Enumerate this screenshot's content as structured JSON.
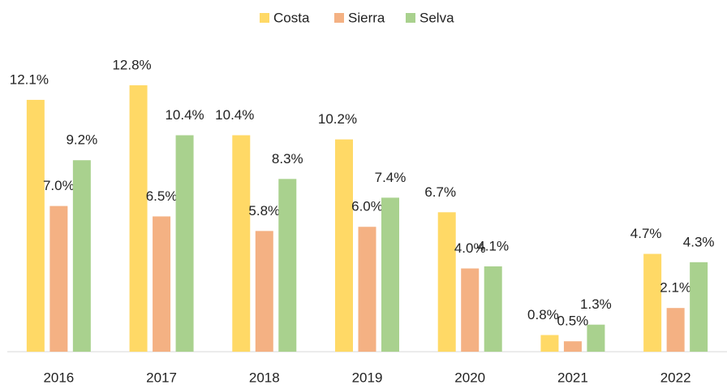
{
  "chart_data": {
    "type": "bar",
    "categories": [
      "2016",
      "2017",
      "2018",
      "2019",
      "2020",
      "2021",
      "2022"
    ],
    "series": [
      {
        "name": "Costa",
        "color": "#ffd966",
        "values": [
          12.1,
          12.8,
          10.4,
          10.2,
          6.7,
          0.8,
          4.7
        ],
        "value_labels": [
          "12.1%",
          "12.8%",
          "10.4%",
          "10.2%",
          "6.7%",
          "0.8%",
          "4.7%"
        ]
      },
      {
        "name": "Sierra",
        "color": "#f4b183",
        "values": [
          7.0,
          6.5,
          5.8,
          6.0,
          4.0,
          0.5,
          2.1
        ],
        "value_labels": [
          "7.0%",
          "6.5%",
          "5.8%",
          "6.0%",
          "4.0%",
          "0.5%",
          "2.1%"
        ]
      },
      {
        "name": "Selva",
        "color": "#a9d18e",
        "values": [
          9.2,
          10.4,
          8.3,
          7.4,
          4.1,
          1.3,
          4.3
        ],
        "value_labels": [
          "9.2%",
          "10.4%",
          "8.3%",
          "7.4%",
          "4.1%",
          "1.3%",
          "4.3%"
        ]
      }
    ],
    "legend": "top"
  }
}
